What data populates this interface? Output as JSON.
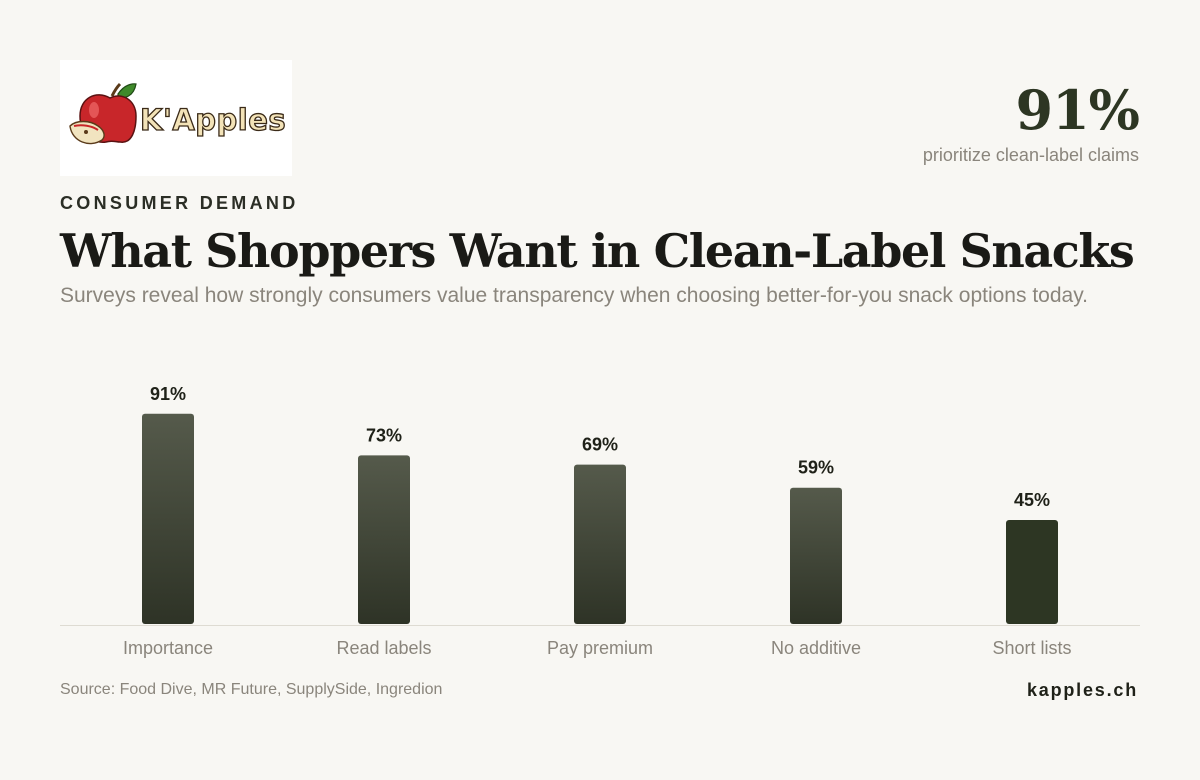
{
  "logo": {
    "text": "K'Apples"
  },
  "stat": {
    "value": "91%",
    "label": "prioritize clean-label claims"
  },
  "eyebrow": "CONSUMER DEMAND",
  "title": "What Shoppers Want in Clean-Label Snacks",
  "subtitle": "Surveys reveal how strongly consumers value transparency when choosing better-for-you snack options today.",
  "colors": {
    "bar_top": "#555a4b",
    "bar_bottom": "#2e3326",
    "bar_solid": "#2d3623",
    "accent": "#2d3623"
  },
  "chart_data": {
    "type": "bar",
    "categories": [
      "Importance",
      "Read labels",
      "Pay premium",
      "No additive",
      "Short lists"
    ],
    "values": [
      91,
      73,
      69,
      59,
      45
    ],
    "value_labels": [
      "91%",
      "73%",
      "69%",
      "59%",
      "45%"
    ],
    "ylim": [
      0,
      100
    ],
    "grid": false,
    "legend": "none"
  },
  "footer": {
    "source": "Source: Food Dive, MR Future, SupplySide, Ingredion",
    "site": "kapples.ch"
  }
}
